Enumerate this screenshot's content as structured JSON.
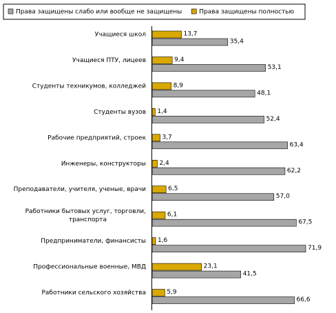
{
  "chart_data": {
    "type": "bar",
    "orientation": "horizontal",
    "categories": [
      "Учащиеся школ",
      "Учащиеся ПТУ, лицеев",
      "Студенты техникумов, колледжей",
      "Студенты вузов",
      "Рабочие предприятий, строек",
      "Инженеры, конструкторы",
      "Преподаватели, учителя, ученые, врачи",
      "Работники бытовых услуг, торговли, транспорта",
      "Предприниматели, финансисты",
      "Профессиональные военные, МВД",
      "Работники сельского хозяйства"
    ],
    "series": [
      {
        "name": "Права защищены слабо или вообще не защищены",
        "color": "#a6a6a6",
        "values": [
          35.4,
          53.1,
          48.1,
          52.4,
          63.4,
          62.2,
          57.0,
          67.5,
          71.9,
          41.5,
          66.6
        ],
        "value_labels": [
          "35,4",
          "53,1",
          "48,1",
          "52,4",
          "63,4",
          "62,2",
          "57,0",
          "67,5",
          "71,9",
          "41,5",
          "66,6"
        ]
      },
      {
        "name": "Права защищены полностью",
        "color": "#d9a900",
        "values": [
          13.7,
          9.4,
          8.9,
          1.4,
          3.7,
          2.4,
          6.5,
          6.1,
          1.6,
          23.1,
          5.9
        ],
        "value_labels": [
          "13,7",
          "9,4",
          "8,9",
          "1,4",
          "3,7",
          "2,4",
          "6,5",
          "6,1",
          "1,6",
          "23,1",
          "5,9"
        ]
      }
    ],
    "legend": "top"
  }
}
